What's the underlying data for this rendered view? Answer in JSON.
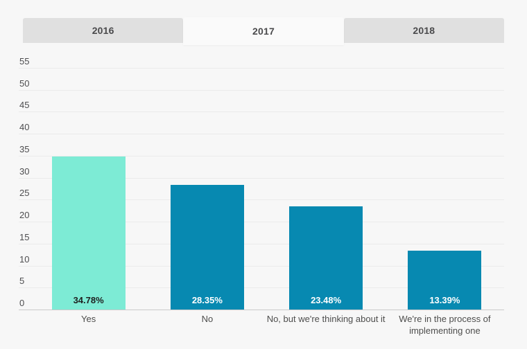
{
  "header": {
    "tabs": [
      {
        "label": "2016",
        "selected": false
      },
      {
        "label": "2017",
        "selected": true
      },
      {
        "label": "2018",
        "selected": false
      }
    ]
  },
  "colors": {
    "background": "#f7f7f7",
    "tab_gray": "#e0e0e0",
    "tab_selected": "#fafafa",
    "tab_text": "#4a4a4c",
    "gridline": "#ebebeb",
    "axis_line": "#c9c9c9",
    "tick_text": "#4d4d4f",
    "category_text": "#4d4d4c",
    "bar_teal": "#7debd5",
    "bar_blue": "#0789b1",
    "value_text_on_teal": "#1f1f1f",
    "value_text_on_blue": "#ffffff"
  },
  "chart_data": {
    "type": "bar",
    "title": "",
    "xlabel": "",
    "ylabel": "",
    "categories": [
      "Yes",
      "No",
      "No, but we're thinking about it",
      "We're in the process of implementing one"
    ],
    "values": [
      34.78,
      28.35,
      23.48,
      13.39
    ],
    "value_labels": [
      "34.78%",
      "28.35%",
      "23.48%",
      "13.39%"
    ],
    "bar_colors": [
      "#7debd5",
      "#0789b1",
      "#0789b1",
      "#0789b1"
    ],
    "value_label_colors": [
      "#1f1f1f",
      "#ffffff",
      "#ffffff",
      "#ffffff"
    ],
    "y_ticks": [
      0,
      5,
      10,
      15,
      20,
      25,
      30,
      35,
      40,
      45,
      50,
      55
    ],
    "ylim": [
      0,
      57.5
    ],
    "grid": true,
    "legend": false
  }
}
